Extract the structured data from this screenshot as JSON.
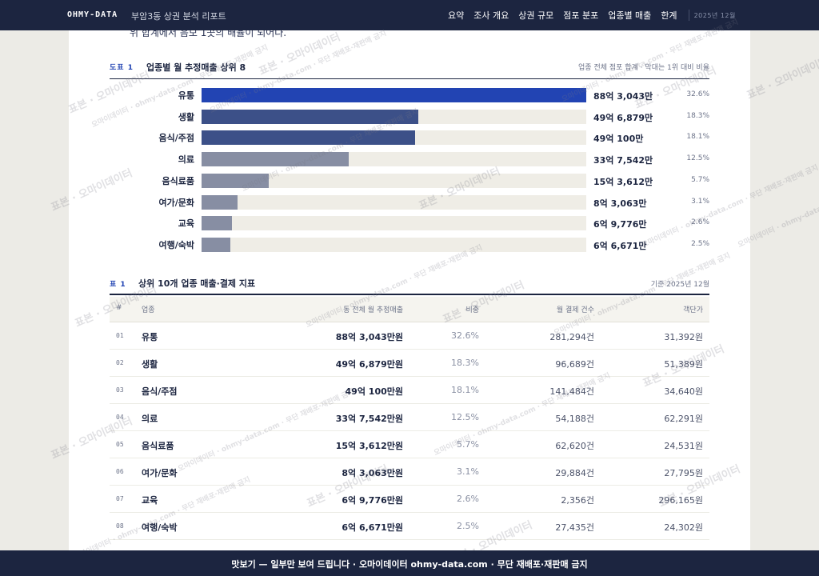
{
  "header": {
    "brand": "OHMY-DATA",
    "report_title": "부암3동 상권 분석 리포트",
    "nav": [
      "요약",
      "조사 개요",
      "상권 규모",
      "점포 분포",
      "업종별 매출",
      "한계"
    ],
    "date": "2025년 12월"
  },
  "intro_text": "위 합계에서 음모 1곳의 배율이 되어다.",
  "figure": {
    "tag": "도표 1",
    "title": "업종별 월 추정매출 상위 8",
    "note": "업종 전체 점포 합계 · 막대는 1위 대비 비율"
  },
  "chart_data": {
    "type": "bar",
    "orientation": "horizontal",
    "categories": [
      "유통",
      "생활",
      "음식/주점",
      "의료",
      "음식료품",
      "여가/문화",
      "교육",
      "여행/숙박"
    ],
    "value_labels": [
      "88억 3,043만",
      "49억 6,879만",
      "49억 100만",
      "33억 7,542만",
      "15억 3,612만",
      "8억 3,063만",
      "6억 9,776만",
      "6억 6,671만"
    ],
    "values_won": [
      8830430000,
      4968790000,
      4901000000,
      3375420000,
      1536120000,
      830630000,
      697760000,
      666710000
    ],
    "share_labels": [
      "32.6%",
      "18.3%",
      "18.1%",
      "12.5%",
      "5.7%",
      "3.1%",
      "2.6%",
      "2.5%"
    ],
    "bar_colors": [
      "#2244b3",
      "#3c5088",
      "#3c5088",
      "#878ea3",
      "#878ea3",
      "#878ea3",
      "#878ea3",
      "#878ea3"
    ],
    "track_color": "#efede6"
  },
  "table": {
    "tag": "표 1",
    "title": "상위 10개 업종 매출·결제 지표",
    "note": "기준 2025년 12월",
    "columns": [
      "#",
      "업종",
      "동 전체 월 추정매출",
      "비중",
      "월 결제 건수",
      "객단가"
    ],
    "rows": [
      {
        "num": "01",
        "name": "유통",
        "sales": "88억 3,043만원",
        "share": "32.6%",
        "count": "281,294건",
        "ticket": "31,392원"
      },
      {
        "num": "02",
        "name": "생활",
        "sales": "49억 6,879만원",
        "share": "18.3%",
        "count": "96,689건",
        "ticket": "51,389원"
      },
      {
        "num": "03",
        "name": "음식/주점",
        "sales": "49억 100만원",
        "share": "18.1%",
        "count": "141,484건",
        "ticket": "34,640원"
      },
      {
        "num": "04",
        "name": "의료",
        "sales": "33억 7,542만원",
        "share": "12.5%",
        "count": "54,188건",
        "ticket": "62,291원"
      },
      {
        "num": "05",
        "name": "음식료품",
        "sales": "15억 3,612만원",
        "share": "5.7%",
        "count": "62,620건",
        "ticket": "24,531원"
      },
      {
        "num": "06",
        "name": "여가/문화",
        "sales": "8억 3,063만원",
        "share": "3.1%",
        "count": "29,884건",
        "ticket": "27,795원"
      },
      {
        "num": "07",
        "name": "교육",
        "sales": "6억 9,776만원",
        "share": "2.6%",
        "count": "2,356건",
        "ticket": "296,165원"
      },
      {
        "num": "08",
        "name": "여행/숙박",
        "sales": "6억 6,671만원",
        "share": "2.5%",
        "count": "27,435건",
        "ticket": "24,302원"
      }
    ]
  },
  "watermark": {
    "short": "표본 · 오마이데이터",
    "long": "오마이데이터 · ohmy-data.com · 무단 재배포·재판매 금지"
  },
  "footer": {
    "text": "맛보기 — 일부만 보여 드립니다 · 오마이데이터 ohmy-data.com · 무단 재배포·재판매 금지"
  }
}
